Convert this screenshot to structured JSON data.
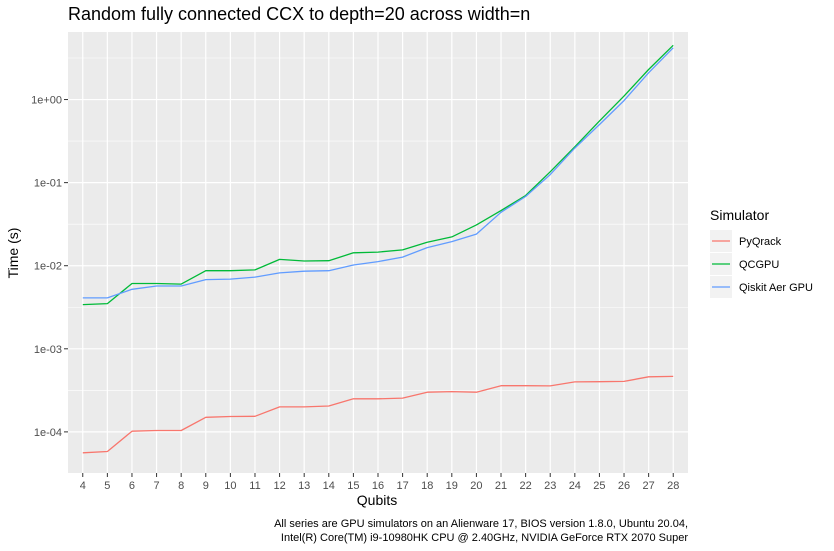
{
  "chart_data": {
    "type": "line",
    "title": "Random fully connected CCX to depth=20 across width=n",
    "xlabel": "Qubits",
    "ylabel": "Time (s)",
    "yscale": "log10",
    "x": [
      4,
      5,
      6,
      7,
      8,
      9,
      10,
      11,
      12,
      13,
      14,
      15,
      16,
      17,
      18,
      19,
      20,
      21,
      22,
      23,
      24,
      25,
      26,
      27,
      28
    ],
    "ylim": [
      3.2e-05,
      6.5
    ],
    "yticks": [
      0.0001,
      0.001,
      0.01,
      0.1,
      1
    ],
    "ytick_labels": [
      "1e-04",
      "1e-03",
      "1e-02",
      "1e-01",
      "1e+00"
    ],
    "grid": true,
    "legend": {
      "title": "Simulator",
      "position": "right"
    },
    "series": [
      {
        "name": "PyQrack",
        "color": "#F8766D",
        "values": [
          5.6e-05,
          5.8e-05,
          0.000102,
          0.000104,
          0.000104,
          0.00015,
          0.000153,
          0.000154,
          0.0002,
          0.0002,
          0.000205,
          0.00025,
          0.00025,
          0.000255,
          0.0003,
          0.000305,
          0.0003,
          0.00036,
          0.00036,
          0.000358,
          0.0004,
          0.000402,
          0.000405,
          0.00046,
          0.000465
        ]
      },
      {
        "name": "QCGPU",
        "color": "#00BA38",
        "values": [
          0.0034,
          0.0035,
          0.0061,
          0.0061,
          0.006,
          0.0087,
          0.0087,
          0.0089,
          0.0119,
          0.0114,
          0.0115,
          0.0143,
          0.0146,
          0.0155,
          0.0192,
          0.0222,
          0.031,
          0.046,
          0.07,
          0.135,
          0.27,
          0.55,
          1.1,
          2.3,
          4.5
        ]
      },
      {
        "name": "Qiskit Aer GPU",
        "color": "#619CFF",
        "values": [
          0.0041,
          0.0041,
          0.0052,
          0.0057,
          0.0057,
          0.0068,
          0.0069,
          0.0073,
          0.0082,
          0.0086,
          0.0087,
          0.0102,
          0.0112,
          0.0127,
          0.0165,
          0.0195,
          0.024,
          0.044,
          0.068,
          0.125,
          0.26,
          0.5,
          0.97,
          2.1,
          4.2
        ]
      }
    ],
    "caption": [
      "All series are GPU simulators on an Alienware 17, BIOS version 1.8.0, Ubuntu 20.04,",
      "Intel(R) Core(TM) i9-10980HK CPU @ 2.40GHz, NVIDIA GeForce RTX 2070 Super"
    ]
  }
}
